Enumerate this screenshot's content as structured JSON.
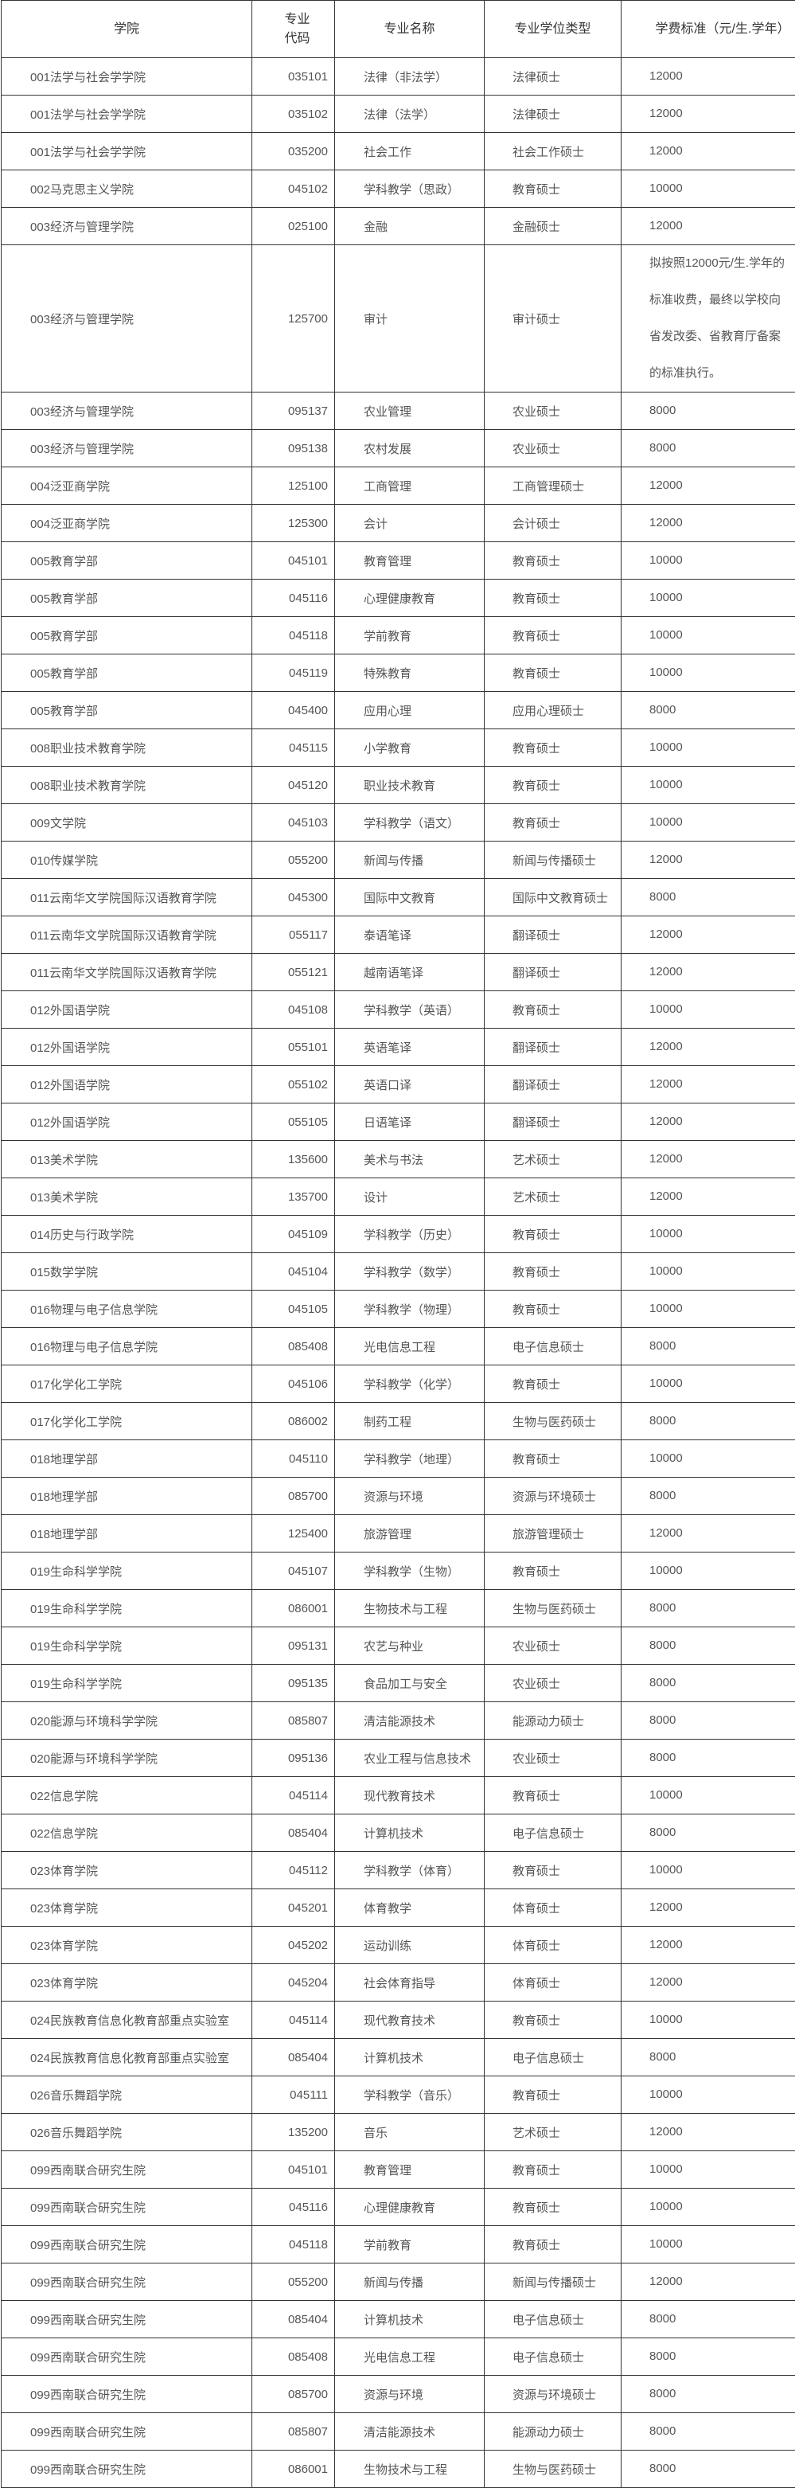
{
  "headers": [
    "学院",
    "专业代码",
    "专业名称",
    "专业学位类型",
    "学费标准（元/生.学年）"
  ],
  "rows": [
    [
      "001法学与社会学学院",
      "035101",
      "法律（非法学）",
      "法律硕士",
      "12000"
    ],
    [
      "001法学与社会学学院",
      "035102",
      "法律（法学）",
      "法律硕士",
      "12000"
    ],
    [
      "001法学与社会学学院",
      "035200",
      "社会工作",
      "社会工作硕士",
      "12000"
    ],
    [
      "002马克思主义学院",
      "045102",
      "学科教学（思政）",
      "教育硕士",
      "10000"
    ],
    [
      "003经济与管理学院",
      "025100",
      "金融",
      "金融硕士",
      "12000"
    ],
    [
      "003经济与管理学院",
      "125700",
      "审计",
      "审计硕士",
      "拟按照12000元/生.学年的标准收费，最终以学校向省发改委、省教育厅备案的标准执行。"
    ],
    [
      "003经济与管理学院",
      "095137",
      "农业管理",
      "农业硕士",
      "8000"
    ],
    [
      "003经济与管理学院",
      "095138",
      "农村发展",
      "农业硕士",
      "8000"
    ],
    [
      "004泛亚商学院",
      "125100",
      "工商管理",
      "工商管理硕士",
      "12000"
    ],
    [
      "004泛亚商学院",
      "125300",
      "会计",
      "会计硕士",
      "12000"
    ],
    [
      "005教育学部",
      "045101",
      "教育管理",
      "教育硕士",
      "10000"
    ],
    [
      "005教育学部",
      "045116",
      "心理健康教育",
      "教育硕士",
      "10000"
    ],
    [
      "005教育学部",
      "045118",
      "学前教育",
      "教育硕士",
      "10000"
    ],
    [
      "005教育学部",
      "045119",
      "特殊教育",
      "教育硕士",
      "10000"
    ],
    [
      "005教育学部",
      "045400",
      "应用心理",
      "应用心理硕士",
      "8000"
    ],
    [
      "008职业技术教育学院",
      "045115",
      "小学教育",
      "教育硕士",
      "10000"
    ],
    [
      "008职业技术教育学院",
      "045120",
      "职业技术教育",
      "教育硕士",
      "10000"
    ],
    [
      "009文学院",
      "045103",
      "学科教学（语文）",
      "教育硕士",
      "10000"
    ],
    [
      "010传媒学院",
      "055200",
      "新闻与传播",
      "新闻与传播硕士",
      "12000"
    ],
    [
      "011云南华文学院国际汉语教育学院",
      "045300",
      "国际中文教育",
      "国际中文教育硕士",
      "8000"
    ],
    [
      "011云南华文学院国际汉语教育学院",
      "055117",
      "泰语笔译",
      "翻译硕士",
      "12000"
    ],
    [
      "011云南华文学院国际汉语教育学院",
      "055121",
      "越南语笔译",
      "翻译硕士",
      "12000"
    ],
    [
      "012外国语学院",
      "045108",
      "学科教学（英语）",
      "教育硕士",
      "10000"
    ],
    [
      "012外国语学院",
      "055101",
      "英语笔译",
      "翻译硕士",
      "12000"
    ],
    [
      "012外国语学院",
      "055102",
      "英语口译",
      "翻译硕士",
      "12000"
    ],
    [
      "012外国语学院",
      "055105",
      "日语笔译",
      "翻译硕士",
      "12000"
    ],
    [
      "013美术学院",
      "135600",
      "美术与书法",
      "艺术硕士",
      "12000"
    ],
    [
      "013美术学院",
      "135700",
      "设计",
      "艺术硕士",
      "12000"
    ],
    [
      "014历史与行政学院",
      "045109",
      "学科教学（历史）",
      "教育硕士",
      "10000"
    ],
    [
      "015数学学院",
      "045104",
      "学科教学（数学）",
      "教育硕士",
      "10000"
    ],
    [
      "016物理与电子信息学院",
      "045105",
      "学科教学（物理）",
      "教育硕士",
      "10000"
    ],
    [
      "016物理与电子信息学院",
      "085408",
      "光电信息工程",
      "电子信息硕士",
      "8000"
    ],
    [
      "017化学化工学院",
      "045106",
      "学科教学（化学）",
      "教育硕士",
      "10000"
    ],
    [
      "017化学化工学院",
      "086002",
      "制药工程",
      "生物与医药硕士",
      "8000"
    ],
    [
      "018地理学部",
      "045110",
      "学科教学（地理）",
      "教育硕士",
      "10000"
    ],
    [
      "018地理学部",
      "085700",
      "资源与环境",
      "资源与环境硕士",
      "8000"
    ],
    [
      "018地理学部",
      "125400",
      "旅游管理",
      "旅游管理硕士",
      "12000"
    ],
    [
      "019生命科学学院",
      "045107",
      "学科教学（生物）",
      "教育硕士",
      "10000"
    ],
    [
      "019生命科学学院",
      "086001",
      "生物技术与工程",
      "生物与医药硕士",
      "8000"
    ],
    [
      "019生命科学学院",
      "095131",
      "农艺与种业",
      "农业硕士",
      "8000"
    ],
    [
      "019生命科学学院",
      "095135",
      "食品加工与安全",
      "农业硕士",
      "8000"
    ],
    [
      "020能源与环境科学学院",
      "085807",
      "清洁能源技术",
      "能源动力硕士",
      "8000"
    ],
    [
      "020能源与环境科学学院",
      "095136",
      "农业工程与信息技术",
      "农业硕士",
      "8000"
    ],
    [
      "022信息学院",
      "045114",
      "现代教育技术",
      "教育硕士",
      "10000"
    ],
    [
      "022信息学院",
      "085404",
      "计算机技术",
      "电子信息硕士",
      "8000"
    ],
    [
      "023体育学院",
      "045112",
      "学科教学（体育）",
      "教育硕士",
      "10000"
    ],
    [
      "023体育学院",
      "045201",
      "体育教学",
      "体育硕士",
      "12000"
    ],
    [
      "023体育学院",
      "045202",
      "运动训练",
      "体育硕士",
      "12000"
    ],
    [
      "023体育学院",
      "045204",
      "社会体育指导",
      "体育硕士",
      "12000"
    ],
    [
      "024民族教育信息化教育部重点实验室",
      "045114",
      "现代教育技术",
      "教育硕士",
      "10000"
    ],
    [
      "024民族教育信息化教育部重点实验室",
      "085404",
      "计算机技术",
      "电子信息硕士",
      "8000"
    ],
    [
      "026音乐舞蹈学院",
      "045111",
      "学科教学（音乐）",
      "教育硕士",
      "10000"
    ],
    [
      "026音乐舞蹈学院",
      "135200",
      "音乐",
      "艺术硕士",
      "12000"
    ],
    [
      "099西南联合研究生院",
      "045101",
      "教育管理",
      "教育硕士",
      "10000"
    ],
    [
      "099西南联合研究生院",
      "045116",
      "心理健康教育",
      "教育硕士",
      "10000"
    ],
    [
      "099西南联合研究生院",
      "045118",
      "学前教育",
      "教育硕士",
      "10000"
    ],
    [
      "099西南联合研究生院",
      "055200",
      "新闻与传播",
      "新闻与传播硕士",
      "12000"
    ],
    [
      "099西南联合研究生院",
      "085404",
      "计算机技术",
      "电子信息硕士",
      "8000"
    ],
    [
      "099西南联合研究生院",
      "085408",
      "光电信息工程",
      "电子信息硕士",
      "8000"
    ],
    [
      "099西南联合研究生院",
      "085700",
      "资源与环境",
      "资源与环境硕士",
      "8000"
    ],
    [
      "099西南联合研究生院",
      "085807",
      "清洁能源技术",
      "能源动力硕士",
      "8000"
    ],
    [
      "099西南联合研究生院",
      "086001",
      "生物技术与工程",
      "生物与医药硕士",
      "8000"
    ]
  ]
}
